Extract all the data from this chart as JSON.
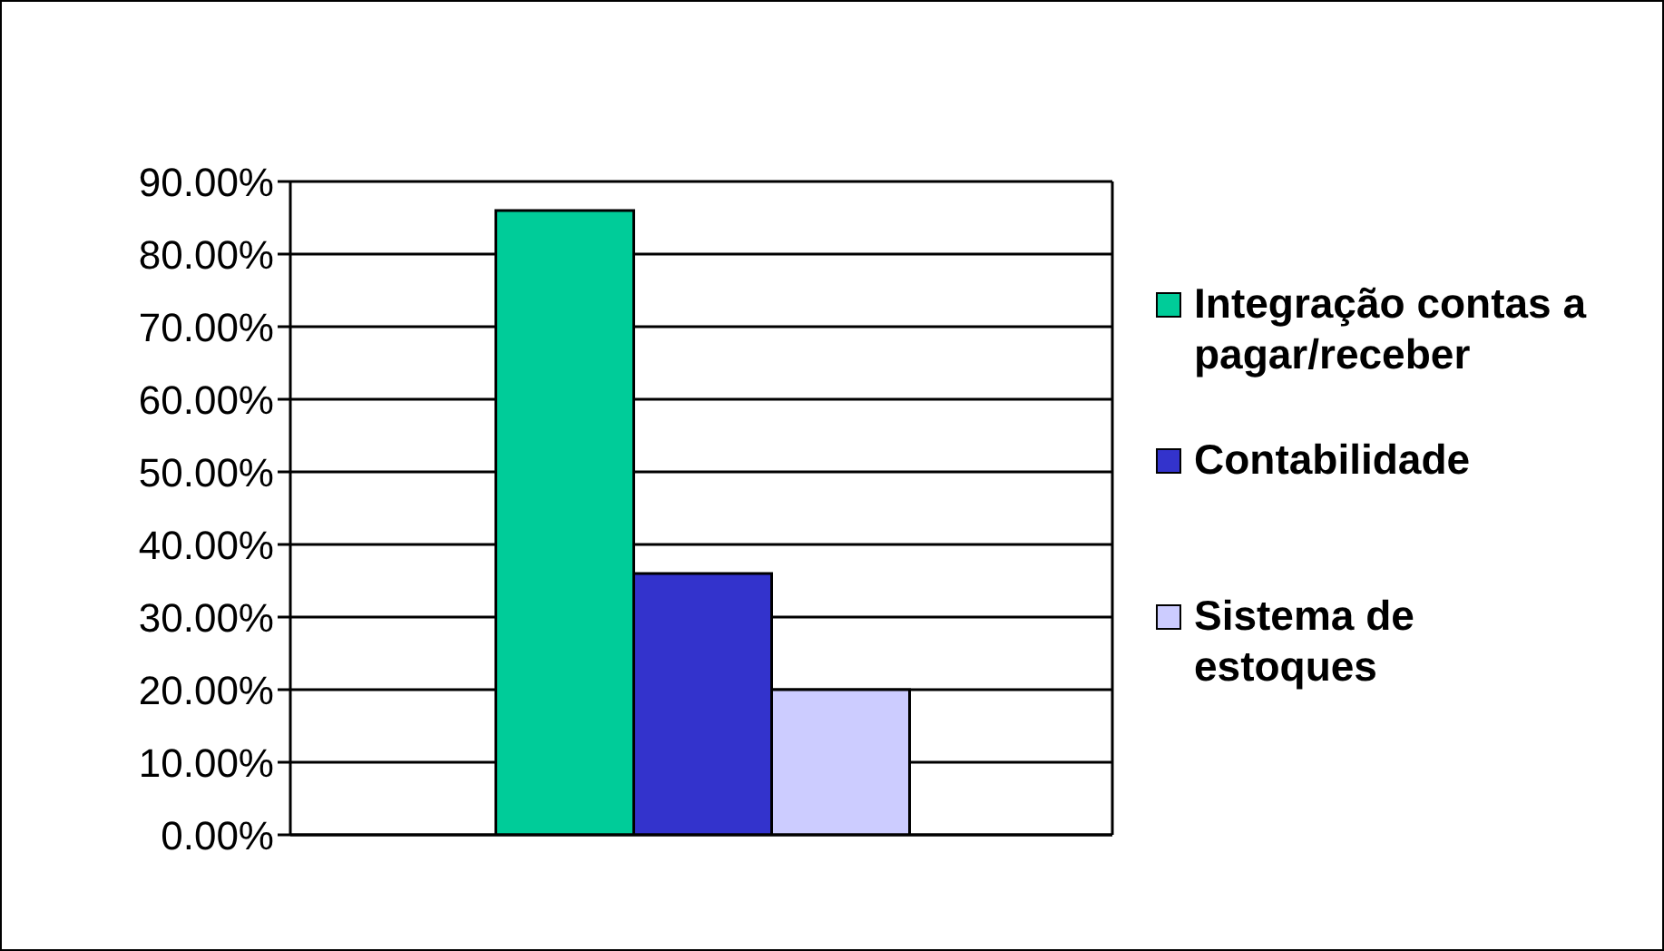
{
  "chart_data": {
    "type": "bar",
    "categories": [
      null
    ],
    "series": [
      {
        "name": "Integração contas a pagar/receber",
        "color": "#00cc99",
        "values": [
          86
        ]
      },
      {
        "name": "Contabilidade",
        "color": "#3333cc",
        "values": [
          36
        ]
      },
      {
        "name": "Sistema de estoques",
        "color": "#ccccff",
        "values": [
          20
        ]
      }
    ],
    "ylim": [
      0,
      90
    ],
    "yticks": [
      {
        "value": 0,
        "label": "0.00%"
      },
      {
        "value": 10,
        "label": "10.00%"
      },
      {
        "value": 20,
        "label": "20.00%"
      },
      {
        "value": 30,
        "label": "30.00%"
      },
      {
        "value": 40,
        "label": "40.00%"
      },
      {
        "value": 50,
        "label": "50.00%"
      },
      {
        "value": 60,
        "label": "60.00%"
      },
      {
        "value": 70,
        "label": "70.00%"
      },
      {
        "value": 80,
        "label": "80.00%"
      },
      {
        "value": 90,
        "label": "90.00%"
      }
    ],
    "grid": "y",
    "legend": "right",
    "tick_labels": "y"
  }
}
